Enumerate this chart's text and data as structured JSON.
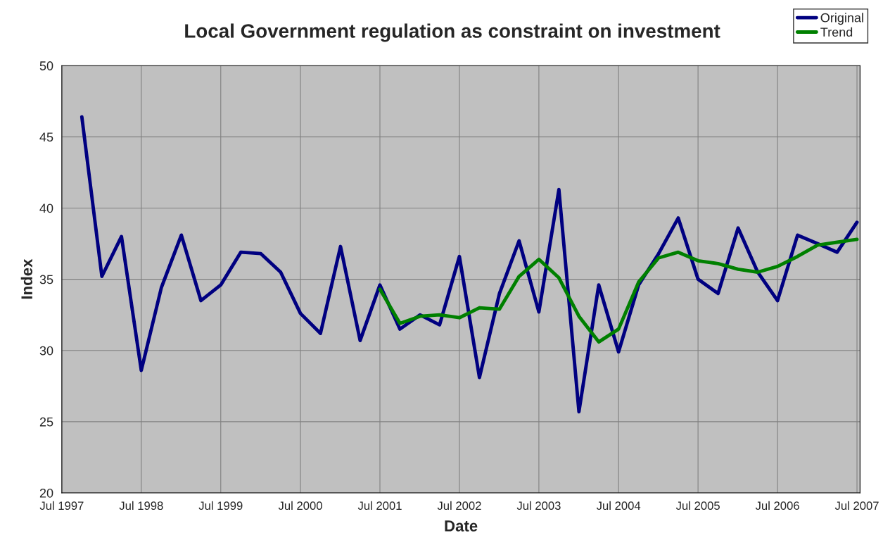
{
  "chart_data": {
    "type": "line",
    "title": "Local Government regulation as constraint on investment",
    "xlabel": "Date",
    "ylabel": "Index",
    "x": [
      "1997-10",
      "1998-01",
      "1998-04",
      "1998-07",
      "1998-10",
      "1999-01",
      "1999-04",
      "1999-07",
      "1999-10",
      "2000-01",
      "2000-04",
      "2000-07",
      "2000-10",
      "2001-01",
      "2001-04",
      "2001-07",
      "2001-10",
      "2002-01",
      "2002-04",
      "2002-07",
      "2002-10",
      "2003-01",
      "2003-04",
      "2003-07",
      "2003-10",
      "2004-01",
      "2004-04",
      "2004-07",
      "2004-10",
      "2005-01",
      "2005-04",
      "2005-07",
      "2005-10",
      "2006-01",
      "2006-04",
      "2006-07",
      "2006-10",
      "2007-01",
      "2007-04",
      "2007-07"
    ],
    "series": [
      {
        "name": "Original",
        "color": "#000080",
        "values": [
          46.4,
          35.2,
          38.0,
          28.6,
          34.4,
          38.1,
          33.5,
          34.6,
          36.9,
          36.8,
          35.5,
          32.6,
          31.2,
          37.3,
          30.7,
          34.6,
          31.5,
          32.5,
          31.8,
          36.6,
          28.1,
          34.0,
          37.7,
          32.7,
          41.3,
          25.7,
          34.6,
          29.9,
          34.6,
          36.8,
          39.3,
          35.0,
          34.0,
          38.6,
          35.5,
          33.5,
          38.1,
          37.5,
          36.9,
          39.0
        ]
      },
      {
        "name": "Trend",
        "color": "#008000",
        "x": [
          "2001-07",
          "2001-10",
          "2002-01",
          "2002-04",
          "2002-07",
          "2002-10",
          "2003-01",
          "2003-04",
          "2003-07",
          "2003-10",
          "2004-01",
          "2004-04",
          "2004-07",
          "2004-10",
          "2005-01",
          "2005-04",
          "2005-07",
          "2005-10",
          "2006-01",
          "2006-04",
          "2006-07",
          "2006-10",
          "2007-01",
          "2007-04",
          "2007-07"
        ],
        "values": [
          34.3,
          31.9,
          32.4,
          32.5,
          32.3,
          33.0,
          32.9,
          35.2,
          36.4,
          35.1,
          32.4,
          30.6,
          31.5,
          34.8,
          36.5,
          36.9,
          36.3,
          36.1,
          35.7,
          35.5,
          35.9,
          36.6,
          37.4,
          37.6,
          37.8
        ]
      }
    ],
    "xlim": [
      "1997-07",
      "2007-07-15"
    ],
    "xticks": [
      {
        "value": "1997-07",
        "label": "Jul 1997"
      },
      {
        "value": "1998-07",
        "label": "Jul 1998"
      },
      {
        "value": "1999-07",
        "label": "Jul 1999"
      },
      {
        "value": "2000-07",
        "label": "Jul 2000"
      },
      {
        "value": "2001-07",
        "label": "Jul 2001"
      },
      {
        "value": "2002-07",
        "label": "Jul 2002"
      },
      {
        "value": "2003-07",
        "label": "Jul 2003"
      },
      {
        "value": "2004-07",
        "label": "Jul 2004"
      },
      {
        "value": "2005-07",
        "label": "Jul 2005"
      },
      {
        "value": "2006-07",
        "label": "Jul 2006"
      },
      {
        "value": "2007-07",
        "label": "Jul 2007"
      }
    ],
    "ylim": [
      20,
      50
    ],
    "yticks": [
      20,
      25,
      30,
      35,
      40,
      45,
      50
    ],
    "grid": true,
    "legend": "top right",
    "marker": "none",
    "line_style": "solid"
  }
}
